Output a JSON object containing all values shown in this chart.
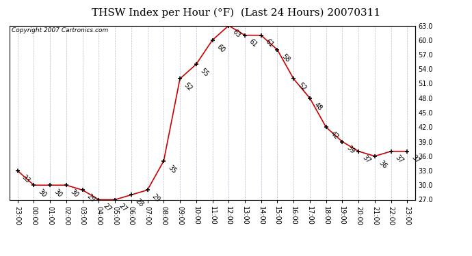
{
  "title": "THSW Index per Hour (°F)  (Last 24 Hours) 20070311",
  "copyright": "Copyright 2007 Cartronics.com",
  "hours": [
    "23:00",
    "00:00",
    "01:00",
    "02:00",
    "03:00",
    "04:00",
    "05:00",
    "06:00",
    "07:00",
    "08:00",
    "09:00",
    "10:00",
    "11:00",
    "12:00",
    "13:00",
    "14:00",
    "15:00",
    "16:00",
    "17:00",
    "18:00",
    "19:00",
    "20:00",
    "21:00",
    "22:00",
    "23:00"
  ],
  "values": [
    33,
    30,
    30,
    30,
    29,
    27,
    27,
    28,
    29,
    35,
    52,
    55,
    60,
    63,
    61,
    61,
    58,
    52,
    48,
    42,
    39,
    37,
    36,
    37,
    37
  ],
  "line_color": "#cc0000",
  "marker_color": "#000000",
  "bg_color": "#ffffff",
  "grid_color": "#aaaacc",
  "ylim_min": 27.0,
  "ylim_max": 63.0,
  "yticks": [
    27.0,
    30.0,
    33.0,
    36.0,
    39.0,
    42.0,
    45.0,
    48.0,
    51.0,
    54.0,
    57.0,
    60.0,
    63.0
  ],
  "title_fontsize": 11,
  "label_fontsize": 7,
  "copyright_fontsize": 6.5,
  "tick_fontsize": 7
}
